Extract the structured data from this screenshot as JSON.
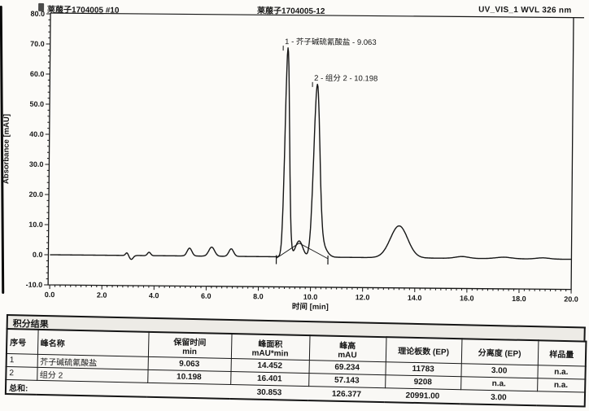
{
  "header": {
    "title_left": "莱菔子1704005 #10",
    "title_center": "莱菔子1704005-12",
    "title_right": "UV_VIS_1 WVL 326 nm"
  },
  "chart_data": {
    "type": "line",
    "title": "",
    "xlabel": "时间 [min]",
    "ylabel": "Absorbance [mAU]",
    "xlim": [
      0,
      20
    ],
    "ylim": [
      -10,
      80
    ],
    "x_tick_step": 2,
    "x_minor_step": 0.2,
    "y_tick_step": 10,
    "y_minor_step": 2,
    "grid": false,
    "peaks": [
      {
        "name": "芥子碱硫氰酸盐",
        "retention_min": 9.063,
        "height_mau": 69.234,
        "area": 14.452
      },
      {
        "name": "组分 2",
        "retention_min": 10.198,
        "height_mau": 57.143,
        "area": 16.401
      },
      {
        "name": "unlabeled broad peak",
        "retention_min": 13.4,
        "height_mau": 10.6,
        "area": null
      }
    ],
    "annotations": [
      {
        "x": 9.063,
        "y": 69.3,
        "label": "1 - 芥子碱硫氰酸盐 - 9.063"
      },
      {
        "x": 10.198,
        "y": 57.3,
        "label": "2 - 组分 2 - 10.198"
      }
    ],
    "curve_model_gaussians": [
      [
        2.95,
        0.9,
        0.05
      ],
      [
        3.12,
        -1.3,
        0.07
      ],
      [
        3.8,
        1.1,
        0.06
      ],
      [
        5.35,
        2.6,
        0.09
      ],
      [
        6.2,
        3.0,
        0.11
      ],
      [
        6.95,
        2.5,
        0.09
      ],
      [
        9.063,
        69.4,
        0.085
      ],
      [
        9.55,
        5.3,
        0.14
      ],
      [
        10.198,
        55.5,
        0.115
      ],
      [
        10.42,
        4.0,
        0.18
      ],
      [
        13.38,
        10.6,
        0.33
      ],
      [
        15.8,
        0.6,
        0.25
      ],
      [
        17.4,
        0.5,
        0.3
      ],
      [
        18.9,
        0.4,
        0.25
      ]
    ],
    "integration_marks": [
      8.68,
      10.66
    ],
    "integration_baseline": [
      [
        8.68,
        -0.5
      ],
      [
        9.55,
        4.6
      ],
      [
        10.66,
        -0.5
      ]
    ]
  },
  "table": {
    "title": "积分结果",
    "columns": [
      {
        "t": "序号",
        "s": ""
      },
      {
        "t": "峰名称",
        "s": ""
      },
      {
        "t": "保留时间",
        "s": "min"
      },
      {
        "t": "峰面积",
        "s": "mAU*min"
      },
      {
        "t": "峰高",
        "s": "mAU"
      },
      {
        "t": "理论板数 (EP)",
        "s": ""
      },
      {
        "t": "分离度 (EP)",
        "s": ""
      },
      {
        "t": "样品量",
        "s": ""
      }
    ],
    "rows": [
      [
        "1",
        "芥子碱硫氰酸盐",
        "9.063",
        "14.452",
        "69.234",
        "11783",
        "3.00",
        "n.a."
      ],
      [
        "2",
        "组分 2",
        "10.198",
        "16.401",
        "57.143",
        "9208",
        "n.a.",
        "n.a."
      ]
    ],
    "totals": {
      "label": "总和:",
      "values": [
        "30.853",
        "126.377",
        "20991.00",
        "3.00",
        ""
      ]
    }
  },
  "style": {
    "ink": "#161616",
    "paper": "#fcfbf8"
  }
}
